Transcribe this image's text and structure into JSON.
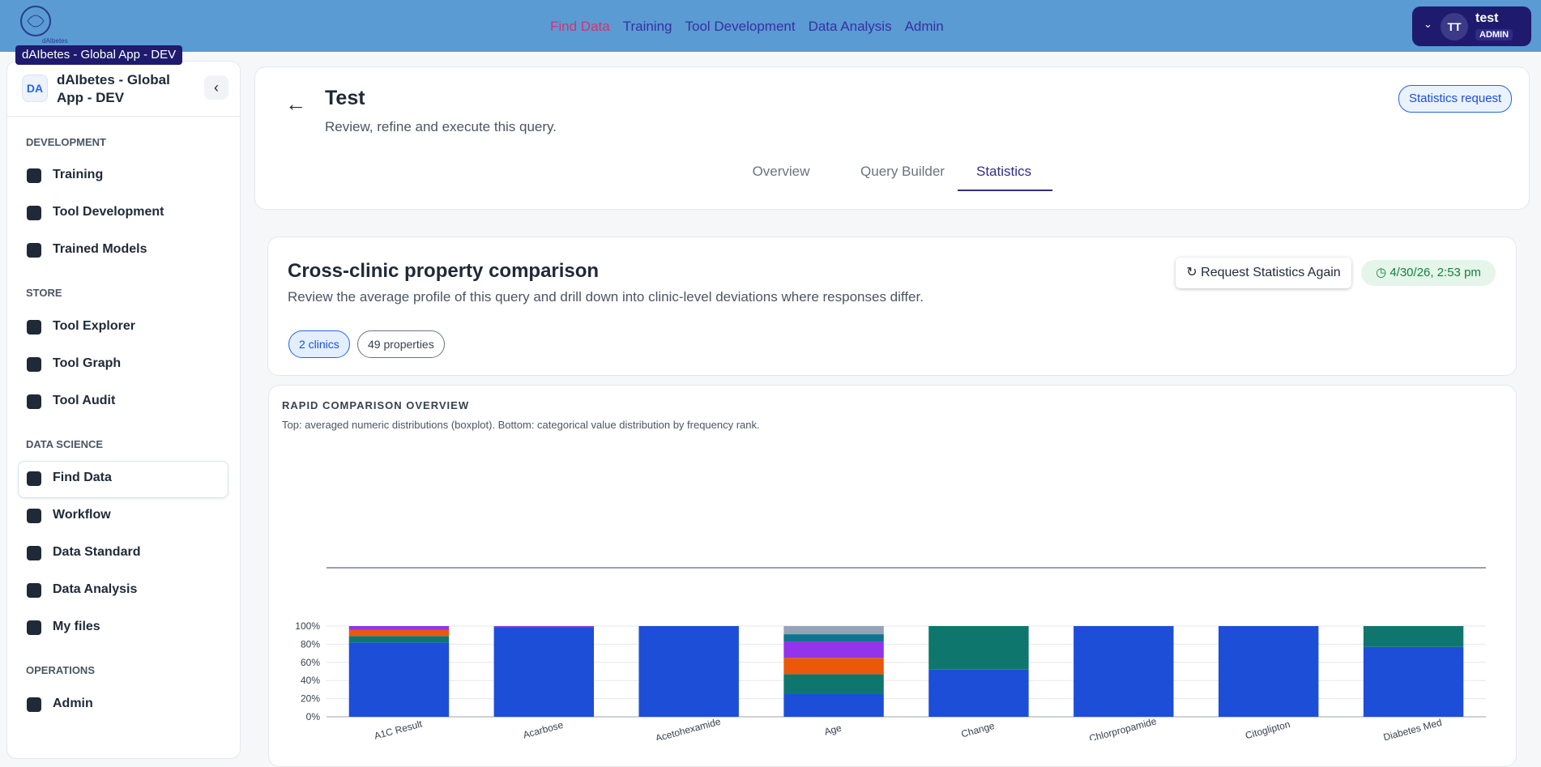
{
  "logo_caption": "dAIbetes",
  "top_nav": [
    "Find Data",
    "Training",
    "Tool Development",
    "Data Analysis",
    "Admin"
  ],
  "user": {
    "initials": "TT",
    "name": "test",
    "role": "ADMIN"
  },
  "tooltip": "dAIbetes - Global App - DEV",
  "sidebar": {
    "badge": "DA",
    "title": "dAIbetes - Global App - DEV",
    "sections": [
      {
        "heading": "DEVELOPMENT",
        "items": [
          "Training",
          "Tool Development",
          "Trained Models"
        ]
      },
      {
        "heading": "STORE",
        "items": [
          "Tool Explorer",
          "Tool Graph",
          "Tool Audit"
        ]
      },
      {
        "heading": "DATA SCIENCE",
        "items": [
          "Find Data",
          "Workflow",
          "Data Standard",
          "Data Analysis",
          "My files"
        ]
      },
      {
        "heading": "OPERATIONS",
        "items": [
          "Admin"
        ]
      }
    ]
  },
  "header": {
    "title": "Test",
    "subtitle": "Review, refine and execute this query.",
    "action": "Statistics request",
    "tabs": [
      "Overview",
      "Query Builder",
      "Statistics"
    ]
  },
  "stats_card": {
    "title": "Cross-clinic property comparison",
    "description": "Review the average profile of this query and drill down into clinic-level deviations where responses differ.",
    "pills": [
      "2 clinics",
      "49 properties"
    ],
    "action": "Request Statistics Again",
    "timestamp": "4/30/26, 2:53 pm"
  },
  "chart_card": {
    "heading": "RAPID COMPARISON OVERVIEW",
    "description": "Top: averaged numeric distributions (boxplot). Bottom: categorical value distribution by frequency rank."
  },
  "chart_data": {
    "type": "stacked_bar",
    "categories": [
      "A1C Result",
      "Acarbose",
      "Acetohexamide",
      "Age",
      "Change",
      "Chlorpropamide",
      "Citoglipton",
      "Diabetes Med"
    ],
    "series": [
      {
        "color": "#1d4ed8",
        "values": [
          82,
          99,
          100,
          25,
          52,
          100,
          100,
          77
        ]
      },
      {
        "color": "#0f766e",
        "values": [
          7,
          0,
          0,
          22,
          48,
          0,
          0,
          23
        ]
      },
      {
        "color": "#ea580c",
        "values": [
          7,
          0,
          0,
          18,
          0,
          0,
          0,
          0
        ]
      },
      {
        "color": "#9333ea",
        "values": [
          4,
          1,
          0,
          18,
          0,
          0,
          0,
          0
        ]
      },
      {
        "color": "#0e7490",
        "values": [
          0,
          0,
          0,
          8,
          0,
          0,
          0,
          0
        ]
      },
      {
        "color": "#94a3b8",
        "values": [
          0,
          0,
          0,
          9,
          0,
          0,
          0,
          0
        ]
      }
    ],
    "ylim": [
      0,
      100
    ],
    "yticks": [
      {
        "value": 0,
        "label": "0%"
      },
      {
        "value": 20,
        "label": "20%"
      },
      {
        "value": 40,
        "label": "40%"
      },
      {
        "value": 60,
        "label": "60%"
      },
      {
        "value": 80,
        "label": "80%"
      },
      {
        "value": 100,
        "label": "100%"
      }
    ],
    "grid": true
  }
}
